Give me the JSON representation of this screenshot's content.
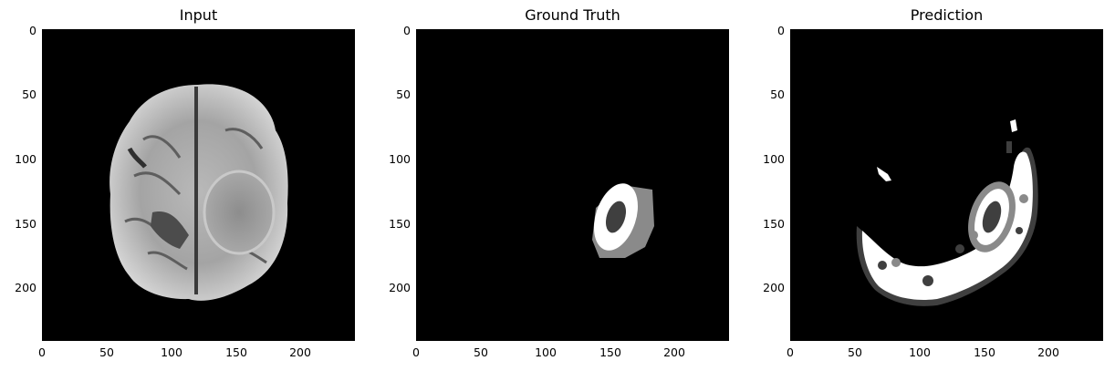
{
  "panels": [
    {
      "title": "Input"
    },
    {
      "title": "Ground Truth"
    },
    {
      "title": "Prediction"
    }
  ],
  "axes": {
    "x_ticks": [
      "0",
      "50",
      "100",
      "150",
      "200"
    ],
    "y_ticks": [
      "0",
      "50",
      "100",
      "150",
      "200"
    ]
  }
}
